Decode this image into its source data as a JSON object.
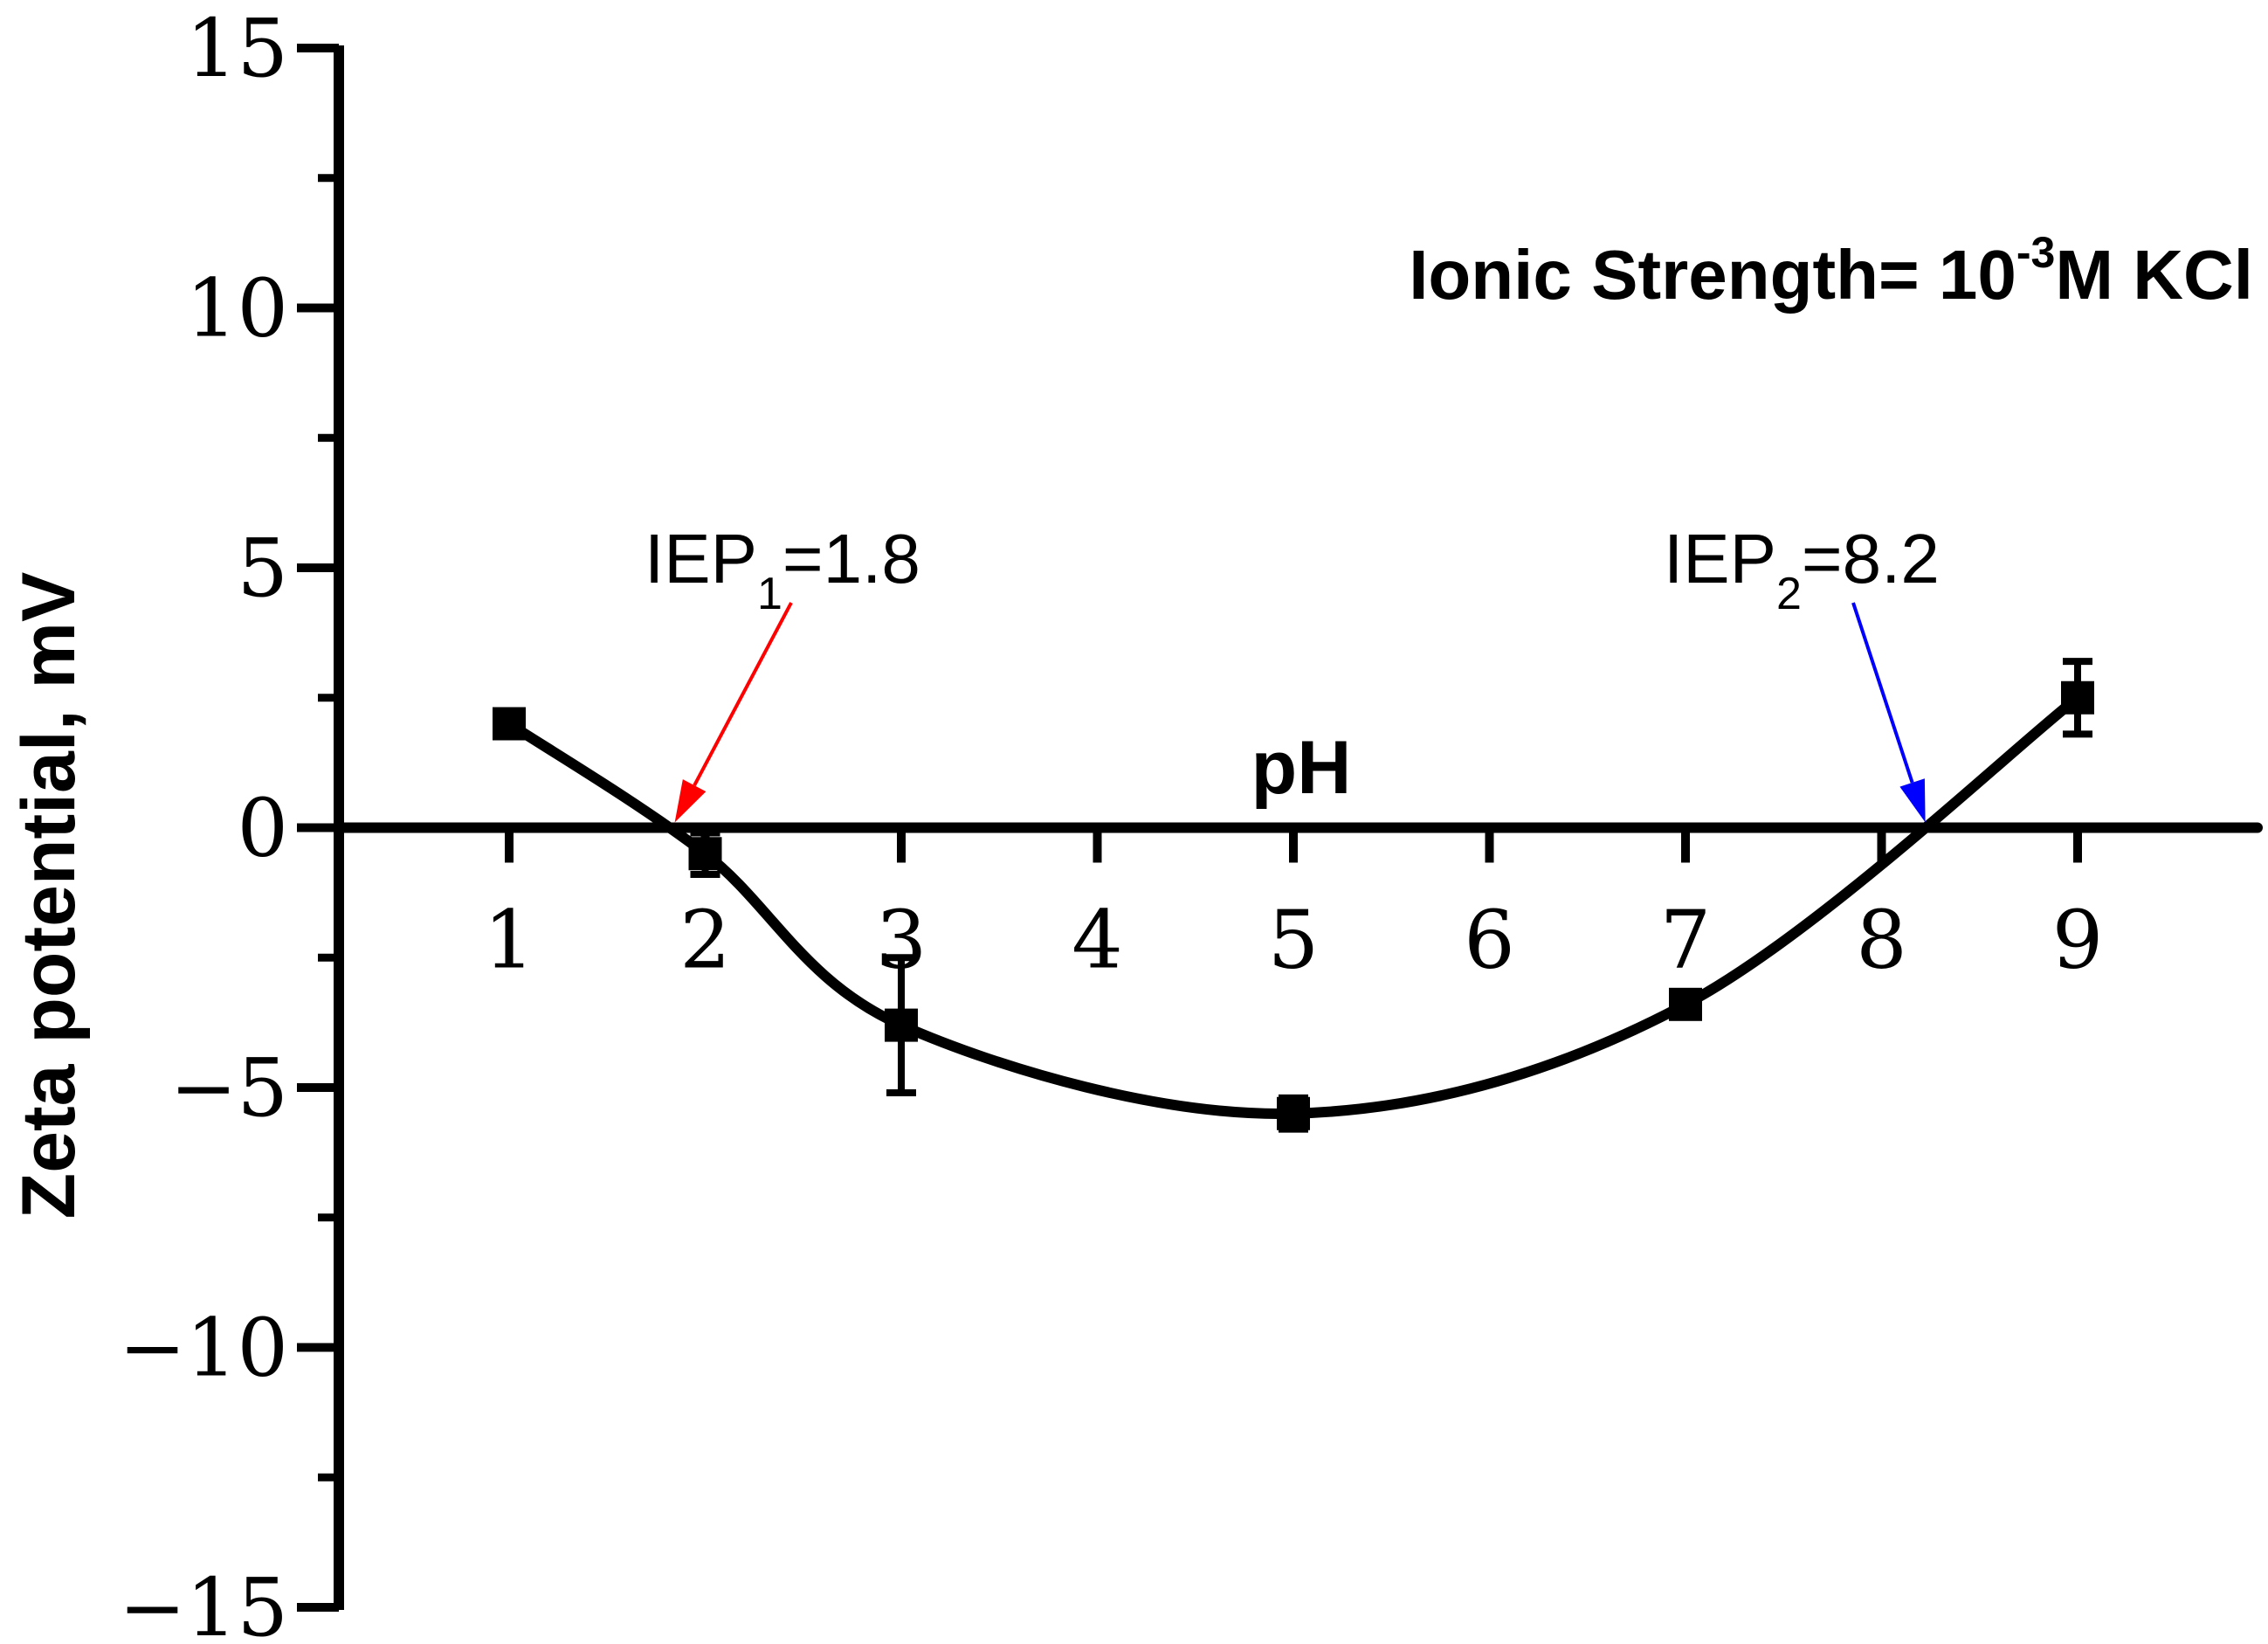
{
  "chart_data": {
    "type": "line",
    "xlabel": "pH",
    "ylabel": "Zeta potential, mV",
    "xlim": [
      0.0,
      9.95
    ],
    "ylim": [
      -15,
      15
    ],
    "xticks": [
      1,
      2,
      3,
      4,
      5,
      6,
      7,
      8,
      9
    ],
    "yticks": [
      15,
      10,
      5,
      0,
      -5,
      -10,
      -15
    ],
    "ytick_labels": [
      "15",
      "10",
      "5",
      "0",
      "−5",
      "−10",
      "−15"
    ],
    "y_minor_step": 2.5,
    "grid": false,
    "series": [
      {
        "x": [
          1,
          2,
          3,
          5,
          7,
          9
        ],
        "y": [
          2.0,
          -0.5,
          -3.8,
          -5.5,
          -3.4,
          2.5
        ],
        "yerr": [
          0.0,
          0.4,
          1.3,
          0.3,
          0.2,
          0.7
        ],
        "color": "#000000",
        "marker": "square"
      }
    ],
    "annotations": {
      "ionic": {
        "main": "Ionic Strength= 10",
        "sup": "-3",
        "tail": "M KCl"
      },
      "iep1": {
        "pre": "IEP",
        "sub": "1",
        "post": "=1.8",
        "x": 1.8,
        "y": 0,
        "color": "#ff0000"
      },
      "iep2": {
        "pre": "IEP",
        "sub": "2",
        "post": "=8.2",
        "x": 8.25,
        "y": 0,
        "color": "#0000ff"
      }
    }
  }
}
